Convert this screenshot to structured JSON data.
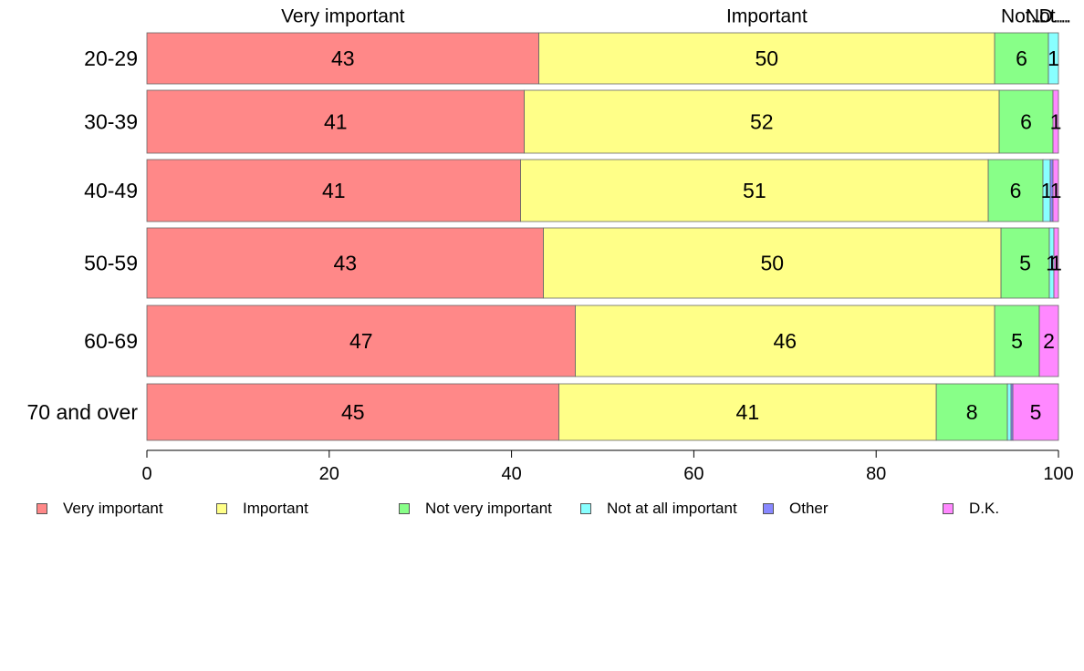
{
  "chart_data": {
    "type": "bar",
    "orientation": "horizontal",
    "stacked": true,
    "categories": [
      "20-29",
      "30-39",
      "40-49",
      "50-59",
      "60-69",
      "70 and over"
    ],
    "series": [
      {
        "name": "Very important",
        "color": "#ff8888",
        "values": [
          43,
          41.4,
          41,
          43.5,
          47,
          45.2
        ],
        "labels": [
          "43",
          "41",
          "41",
          "43",
          "47",
          "45"
        ]
      },
      {
        "name": "Important",
        "color": "#ffff88",
        "values": [
          50,
          52.1,
          51.3,
          50.2,
          46,
          41.4
        ],
        "labels": [
          "50",
          "52",
          "51",
          "50",
          "46",
          "41"
        ]
      },
      {
        "name": "Not very important",
        "color": "#88ff88",
        "values": [
          5.9,
          5.9,
          6,
          5.3,
          4.9,
          7.8
        ],
        "labels": [
          "6",
          "6",
          "6",
          "5",
          "5",
          "8"
        ]
      },
      {
        "name": "Not at all important",
        "color": "#88ffff",
        "values": [
          1.1,
          0,
          0.8,
          0.5,
          0,
          0.4
        ],
        "labels": [
          "1",
          "",
          "1",
          "1",
          "",
          ""
        ]
      },
      {
        "name": "Other",
        "color": "#8888ff",
        "values": [
          0,
          0,
          0.3,
          0,
          0,
          0.2
        ],
        "labels": [
          "",
          "",
          "",
          "",
          "",
          ""
        ]
      },
      {
        "name": "D.K.",
        "color": "#ff88ff",
        "values": [
          0,
          0.6,
          0.6,
          0.5,
          2.1,
          5
        ],
        "labels": [
          "",
          "1",
          "1",
          "1",
          "2",
          "5"
        ]
      }
    ],
    "top_labels": [
      {
        "text": "Very important",
        "x": 21.5
      },
      {
        "text": "Important",
        "x": 68
      },
      {
        "text": "Not...",
        "x": 96.2
      },
      {
        "text": "Not...",
        "x": 98.9
      },
      {
        "text": "D...",
        "x": 99.5
      }
    ],
    "xlim": [
      0,
      100
    ],
    "xticks": [
      0,
      20,
      40,
      60,
      80,
      100
    ],
    "title": "",
    "xlabel": "",
    "ylabel": "",
    "grid": false,
    "legend_position": "bottom"
  }
}
